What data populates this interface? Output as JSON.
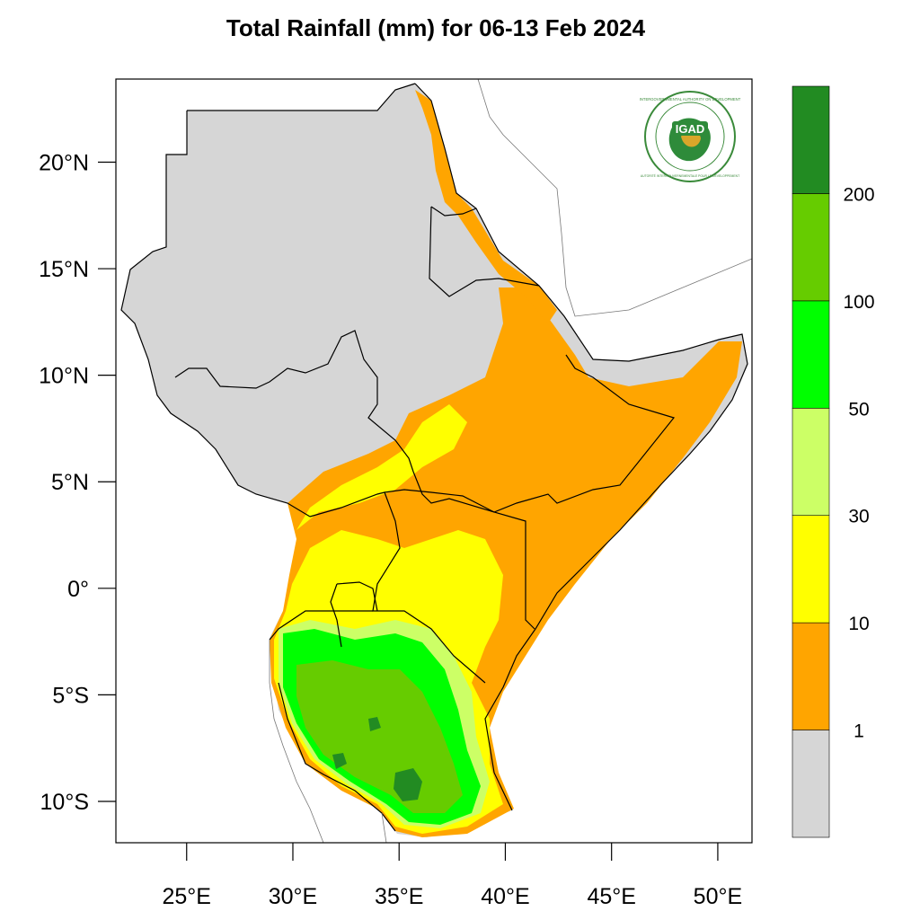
{
  "title": "Total Rainfall (mm) for 06-13 Feb 2024",
  "map": {
    "lat_ticks": [
      {
        "value": 20,
        "label": "20°N"
      },
      {
        "value": 15,
        "label": "15°N"
      },
      {
        "value": 10,
        "label": "10°N"
      },
      {
        "value": 5,
        "label": "5°N"
      },
      {
        "value": 0,
        "label": "0°"
      },
      {
        "value": -5,
        "label": "5°S"
      },
      {
        "value": -10,
        "label": "10°S"
      }
    ],
    "lon_ticks": [
      {
        "value": 25,
        "label": "25°E"
      },
      {
        "value": 30,
        "label": "30°E"
      },
      {
        "value": 35,
        "label": "35°E"
      },
      {
        "value": 40,
        "label": "40°E"
      },
      {
        "value": 45,
        "label": "45°E"
      },
      {
        "value": 50,
        "label": "50°E"
      }
    ],
    "lon_range": [
      21.67,
      51.61
    ],
    "lat_range": [
      -11.94,
      23.9
    ]
  },
  "logo": {
    "text": "IGAD",
    "ring_text": "INTERGOVERNMENTAL AUTHORITY ON DEVELOPMENT",
    "ring_text_fr": "AUTORITÉ INTERGOUVERNEMENTALE POUR LE DÉVELOPPEMENT"
  },
  "colorbar": {
    "bins": [
      {
        "color": "#d6d6d6",
        "label": ""
      },
      {
        "color": "#ffa500",
        "label": "1"
      },
      {
        "color": "#ffff00",
        "label": "10"
      },
      {
        "color": "#ccff66",
        "label": "30"
      },
      {
        "color": "#00ff00",
        "label": "50"
      },
      {
        "color": "#66cc00",
        "label": "100"
      },
      {
        "color": "#228b22",
        "label": "200"
      }
    ]
  },
  "colors": {
    "land_dry": "#d6d6d6",
    "border": "#000000"
  }
}
